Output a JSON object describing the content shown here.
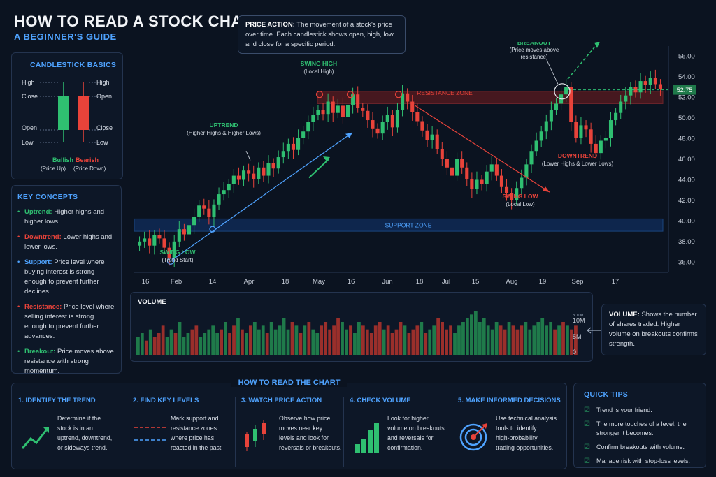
{
  "header": {
    "title": "HOW TO READ A STOCK CHART",
    "subtitle": "A BEGINNER'S GUIDE"
  },
  "price_action": {
    "label": "PRICE ACTION:",
    "text": "The movement of a stock's price over time. Each candlestick shows open, high, low, and close for a specific period."
  },
  "candlestick_basics": {
    "title": "CANDLESTICK BASICS",
    "bullish": {
      "labels": [
        "High",
        "Close",
        "Open",
        "Low"
      ],
      "name": "Bullish",
      "sub": "(Price Up)",
      "color": "#2fbf71"
    },
    "bearish": {
      "labels": [
        "High",
        "Open",
        "Close",
        "Low"
      ],
      "name": "Bearish",
      "sub": "(Price Down)",
      "color": "#e8433a"
    }
  },
  "key_concepts": {
    "title": "KEY CONCEPTS",
    "items": [
      {
        "term": "Uptrend:",
        "text": "Higher highs and higher lows.",
        "color": "#2fbf71"
      },
      {
        "term": "Downtrend:",
        "text": "Lower highs and lower lows.",
        "color": "#e8433a"
      },
      {
        "term": "Support:",
        "text": "Price level where buying interest is strong enough to prevent further declines.",
        "color": "#4fa3ff"
      },
      {
        "term": "Resistance:",
        "text": "Price level where selling interest is strong enough to prevent further advances.",
        "color": "#e8433a"
      },
      {
        "term": "Breakout:",
        "text": "Price moves above resistance with strong momentum.",
        "color": "#2fbf71"
      }
    ]
  },
  "chart_data": {
    "type": "candlestick",
    "y_ticks": [
      "56.00",
      "54.00",
      "52.00",
      "50.00",
      "48.00",
      "46.00",
      "44.00",
      "42.00",
      "40.00",
      "38.00",
      "36.00"
    ],
    "ylim": [
      35,
      57
    ],
    "x_ticks": [
      "16",
      "Feb",
      "14",
      "Apr",
      "18",
      "May",
      "16",
      "Jun",
      "18",
      "Jul",
      "15",
      "Aug",
      "19",
      "Sep",
      "17"
    ],
    "current_price": "52.75",
    "closes": [
      38.0,
      38.3,
      37.6,
      38.6,
      38.3,
      37.4,
      36.4,
      38.0,
      39.2,
      38.7,
      39.6,
      40.4,
      41.5,
      41.2,
      40.4,
      41.6,
      42.6,
      43.0,
      43.6,
      44.4,
      44.0,
      44.9,
      44.6,
      44.1,
      45.2,
      44.4,
      45.6,
      45.1,
      46.2,
      46.8,
      47.5,
      46.9,
      48.1,
      48.7,
      49.6,
      50.3,
      50.8,
      50.4,
      51.6,
      50.5,
      51.2,
      50.1,
      51.3,
      52.3,
      51.0,
      50.7,
      49.8,
      49.0,
      48.5,
      49.6,
      50.3,
      49.1,
      50.8,
      52.4,
      51.6,
      50.6,
      49.7,
      48.8,
      47.9,
      48.4,
      47.0,
      46.0,
      45.2,
      44.4,
      46.0,
      45.2,
      44.1,
      43.1,
      44.0,
      43.6,
      44.8,
      45.5,
      44.4,
      43.3,
      42.7,
      42.0,
      43.2,
      44.2,
      45.5,
      46.8,
      47.8,
      48.7,
      49.7,
      50.8,
      51.4,
      52.3,
      53.0,
      49.6,
      48.1,
      49.3,
      48.9,
      47.5,
      46.6,
      47.8,
      48.1,
      49.8,
      50.5,
      51.6,
      52.2,
      53.0,
      52.5,
      53.6,
      53.2,
      53.9,
      53.3,
      52.8
    ],
    "annotations": {
      "swing_high": [
        "SWING HIGH",
        "(Local High)"
      ],
      "swing_low_start": [
        "SWING LOW",
        "(Trend Start)"
      ],
      "swing_low_local": [
        "SWING LOW",
        "(Local Low)"
      ],
      "uptrend": [
        "UPTREND",
        "(Higher Highs & Higher Lows)"
      ],
      "downtrend": [
        "DOWNTREND",
        "(Lower Highs & Lower Lows)"
      ],
      "breakout": [
        "BREAKOUT",
        "(Price moves above",
        "resistance)"
      ],
      "resistance_zone": "RESISTANCE ZONE",
      "support_zone": "SUPPORT ZONE"
    }
  },
  "volume": {
    "label": "VOLUME",
    "ticks": [
      "10M",
      "5M",
      "0"
    ],
    "top_tick": "8 10M",
    "callout_label": "VOLUME:",
    "callout_text": "Shows the number of shares traded. Higher volume on breakouts confirms strength.",
    "values": [
      5,
      6,
      4,
      7,
      5,
      6,
      8,
      5,
      7,
      6,
      9,
      5,
      6,
      7,
      8,
      5,
      6,
      7,
      8,
      6,
      7,
      9,
      6,
      8,
      10,
      7,
      6,
      8,
      9,
      7,
      8,
      6,
      9,
      7,
      8,
      10,
      7,
      9,
      8,
      6,
      8,
      9,
      7,
      6,
      8,
      9,
      7,
      8,
      10,
      9,
      7,
      8,
      6,
      9,
      8,
      7,
      6,
      8,
      9,
      7,
      8,
      6,
      7,
      9,
      8,
      6,
      7,
      8,
      9,
      6,
      7,
      8,
      10,
      9,
      7,
      8,
      6,
      8,
      9,
      10,
      11,
      12,
      9,
      10,
      8,
      7,
      9,
      8,
      7,
      9,
      8,
      7,
      8,
      9,
      7,
      8,
      9,
      10,
      8,
      9,
      7,
      8,
      9,
      8,
      7,
      8
    ],
    "ups": [
      1,
      1,
      0,
      1,
      0,
      0,
      0,
      1,
      1,
      0,
      1,
      1,
      1,
      0,
      0,
      1,
      1,
      1,
      1,
      1,
      0,
      1,
      0,
      0,
      1,
      0,
      1,
      0,
      1,
      1,
      1,
      0,
      1,
      1,
      1,
      1,
      1,
      0,
      1,
      0,
      1,
      0,
      1,
      1,
      0,
      0,
      0,
      0,
      0,
      1,
      1,
      0,
      1,
      1,
      0,
      0,
      0,
      0,
      0,
      1,
      0,
      0,
      0,
      0,
      1,
      0,
      0,
      0,
      1,
      0,
      1,
      1,
      0,
      0,
      0,
      0,
      1,
      1,
      1,
      1,
      1,
      1,
      1,
      1,
      1,
      1,
      1,
      0,
      0,
      1,
      0,
      0,
      0,
      1,
      1,
      1,
      1,
      1,
      1,
      1,
      0,
      1,
      0,
      1,
      0,
      0
    ]
  },
  "how_to": {
    "title": "HOW TO READ THE CHART",
    "steps": [
      {
        "title": "1. IDENTIFY THE TREND",
        "text": [
          "Determine if the",
          "stock is in an",
          "uptrend, downtrend,",
          "or sideways trend."
        ]
      },
      {
        "title": "2. FIND KEY LEVELS",
        "text": [
          "Mark support and",
          "resistance zones",
          "where price has",
          "reacted in the past."
        ]
      },
      {
        "title": "3. WATCH PRICE ACTION",
        "text": [
          "Observe how price",
          "moves near key",
          "levels and look for",
          "reversals or breakouts."
        ]
      },
      {
        "title": "4. CHECK VOLUME",
        "text": [
          "Look for higher",
          "volume on breakouts",
          "and reversals for",
          "confirmation."
        ]
      },
      {
        "title": "5. MAKE INFORMED DECISIONS",
        "text": [
          "Use technical analysis",
          "tools to identify",
          "high-probability",
          "trading opportunities."
        ]
      }
    ]
  },
  "quick_tips": {
    "title": "QUICK TIPS",
    "items": [
      "Trend is your friend.",
      "The more touches of a level, the stronger it becomes.",
      "Confirm breakouts with volume.",
      "Manage risk with stop-loss levels."
    ]
  },
  "colors": {
    "bull": "#2fbf71",
    "bear": "#e8433a",
    "accent": "#4fa3ff",
    "bg": "#0b1320"
  }
}
